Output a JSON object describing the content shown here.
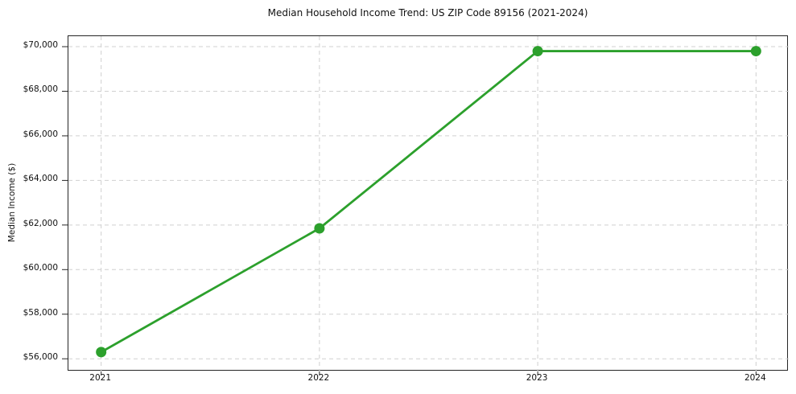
{
  "chart_data": {
    "type": "line",
    "title": "Median Household Income Trend: US ZIP Code 89156 (2021-2024)",
    "ylabel": "Median Income ($)",
    "xlabel": "",
    "x": [
      2021,
      2022,
      2023,
      2024
    ],
    "values": [
      56300,
      61850,
      69800,
      69800
    ],
    "series_name": "median-household-income",
    "xticks": [
      {
        "value": 2021,
        "label": "2021"
      },
      {
        "value": 2022,
        "label": "2022"
      },
      {
        "value": 2023,
        "label": "2023"
      },
      {
        "value": 2024,
        "label": "2024"
      }
    ],
    "yticks": [
      {
        "value": 56000,
        "label": "$56,000"
      },
      {
        "value": 58000,
        "label": "$58,000"
      },
      {
        "value": 60000,
        "label": "$60,000"
      },
      {
        "value": 62000,
        "label": "$62,000"
      },
      {
        "value": 64000,
        "label": "$64,000"
      },
      {
        "value": 66000,
        "label": "$66,000"
      },
      {
        "value": 68000,
        "label": "$68,000"
      },
      {
        "value": 70000,
        "label": "$70,000"
      }
    ],
    "xlim": [
      2020.85,
      2024.15
    ],
    "ylim": [
      55430,
      70470
    ],
    "grid": "dashed-both-axes",
    "legend": "none",
    "marker": "circle",
    "line_color": "#2ca02c",
    "grid_color": "#d0d0d0",
    "spine_color": "#262626",
    "text_color": "#111111",
    "background": "#ffffff"
  }
}
